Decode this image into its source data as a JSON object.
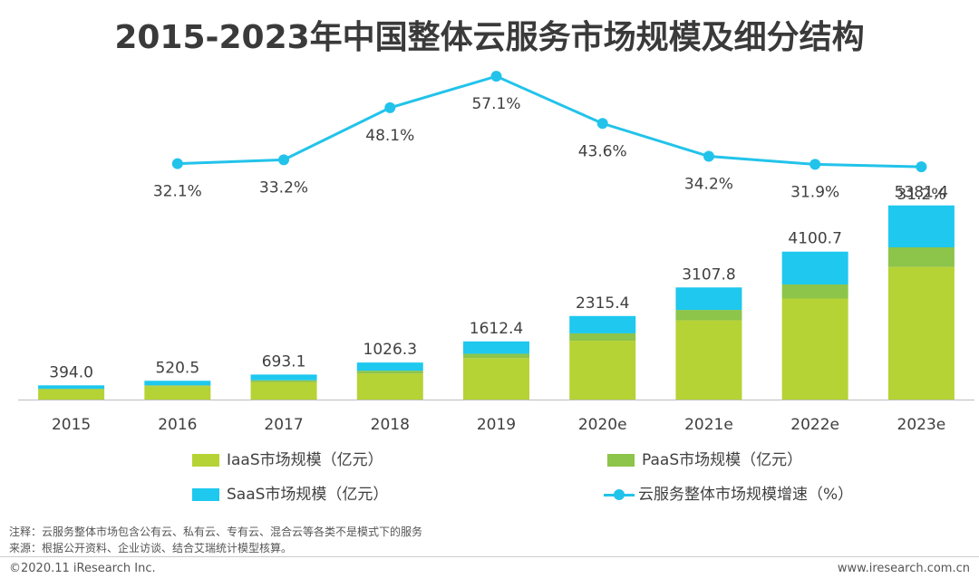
{
  "title": "2015-2023年中国整体云服务市场规模及细分结构",
  "chart_data": {
    "type": "bar",
    "stacked": true,
    "categories": [
      "2015",
      "2016",
      "2017",
      "2018",
      "2019",
      "2020e",
      "2021e",
      "2022e",
      "2023e"
    ],
    "totals": [
      394.0,
      520.5,
      693.1,
      1026.3,
      1612.4,
      2315.4,
      3107.8,
      4100.7,
      5381.4
    ],
    "total_labels": [
      "394.0",
      "520.5",
      "693.1",
      "1026.3",
      "1612.4",
      "2315.4",
      "3107.8",
      "4100.7",
      "5381.4"
    ],
    "series": [
      {
        "name": "IaaS市场规模（亿元）",
        "color": "#b5d334",
        "values": [
          280,
          370,
          480,
          720,
          1150,
          1630,
          2195,
          2800,
          3675
        ]
      },
      {
        "name": "PaaS市场规模（亿元）",
        "color": "#8dc44a",
        "values": [
          20,
          25,
          55,
          80,
          120,
          205,
          290,
          390,
          545
        ]
      },
      {
        "name": "SaaS市场规模（亿元）",
        "color": "#1ec8ee",
        "values": [
          94,
          125.5,
          158.1,
          226.3,
          342.4,
          480.4,
          622.8,
          910.7,
          1161.4
        ]
      }
    ],
    "line_series": {
      "name": "云服务整体市场规模增速（%）",
      "color": "#22c3ea",
      "values": [
        32.1,
        33.2,
        48.1,
        57.1,
        43.6,
        34.2,
        31.9,
        31.2
      ],
      "labels": [
        "32.1%",
        "33.2%",
        "48.1%",
        "57.1%",
        "43.6%",
        "34.2%",
        "31.9%",
        "31.2%"
      ],
      "start_index": 1
    },
    "ylim": [
      0,
      5400
    ],
    "line_ylim": [
      25,
      60
    ],
    "grid": false,
    "legend_position": "bottom"
  },
  "legend": {
    "iaas": "IaaS市场规模（亿元）",
    "paas": "PaaS市场规模（亿元）",
    "saas": "SaaS市场规模（亿元）",
    "growth": "云服务整体市场规模增速（%）"
  },
  "colors": {
    "iaas": "#b5d334",
    "paas": "#8dc44a",
    "saas": "#1ec8ee",
    "line": "#22c3ea"
  },
  "notes": {
    "note": "注释：云服务整体市场包含公有云、私有云、专有云、混合云等各类不是模式下的服务",
    "source": "来源：根据公开资料、企业访谈、结合艾瑞统计模型核算。"
  },
  "footer": {
    "copyright": "©2020.11 iResearch Inc.",
    "url": "www.iresearch.com.cn"
  }
}
